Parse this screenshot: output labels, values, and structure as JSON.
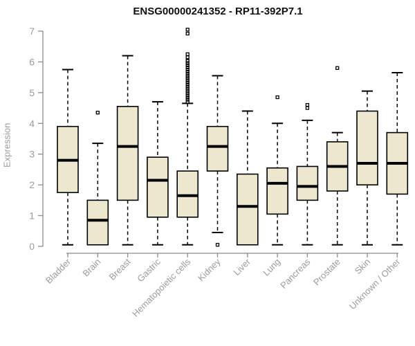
{
  "chart_data": {
    "type": "boxplot",
    "title": "ENSG00000241352 - RP11-392P7.1",
    "ylabel": "Expression",
    "ylim": [
      0,
      7
    ],
    "yticks": [
      0,
      1,
      2,
      3,
      4,
      5,
      6,
      7
    ],
    "grid": false,
    "legend": "none",
    "categories": [
      "Bladder",
      "Brain",
      "Breast",
      "Gastric",
      "Hematopoietic cells",
      "Kidney",
      "Liver",
      "Lung",
      "Pancreas",
      "Prostate",
      "Skin",
      "Unknown / Other"
    ],
    "boxes": [
      {
        "category": "Bladder",
        "whisker_low": 0.05,
        "q1": 1.75,
        "median": 2.8,
        "q3": 3.9,
        "whisker_high": 5.75,
        "outliers": []
      },
      {
        "category": "Brain",
        "whisker_low": 0.05,
        "q1": 0.05,
        "median": 0.85,
        "q3": 1.5,
        "whisker_high": 3.35,
        "outliers": [
          4.35
        ]
      },
      {
        "category": "Breast",
        "whisker_low": 0.05,
        "q1": 1.5,
        "median": 3.25,
        "q3": 4.55,
        "whisker_high": 6.2,
        "outliers": []
      },
      {
        "category": "Gastric",
        "whisker_low": 0.05,
        "q1": 0.95,
        "median": 2.15,
        "q3": 2.9,
        "whisker_high": 4.7,
        "outliers": []
      },
      {
        "category": "Hematopoietic cells",
        "whisker_low": 0.05,
        "q1": 0.95,
        "median": 1.65,
        "q3": 2.45,
        "whisker_high": 4.65,
        "outliers": [
          7.05,
          6.92,
          6.25,
          6.15,
          6.03,
          5.96,
          5.89,
          5.82,
          5.75,
          5.68,
          5.61,
          5.54,
          5.47,
          5.4,
          5.33,
          5.26,
          5.19,
          5.12,
          5.05,
          4.98,
          4.91,
          4.84,
          4.77,
          4.7
        ]
      },
      {
        "category": "Kidney",
        "whisker_low": 0.45,
        "q1": 2.45,
        "median": 3.25,
        "q3": 3.9,
        "whisker_high": 5.55,
        "outliers": [
          0.05
        ]
      },
      {
        "category": "Liver",
        "whisker_low": 0.05,
        "q1": 0.05,
        "median": 1.3,
        "q3": 2.35,
        "whisker_high": 4.4,
        "outliers": []
      },
      {
        "category": "Lung",
        "whisker_low": 0.05,
        "q1": 1.05,
        "median": 2.05,
        "q3": 2.55,
        "whisker_high": 4.0,
        "outliers": [
          4.85
        ]
      },
      {
        "category": "Pancreas",
        "whisker_low": 0.05,
        "q1": 1.5,
        "median": 1.95,
        "q3": 2.6,
        "whisker_high": 4.1,
        "outliers": [
          4.5,
          4.6
        ]
      },
      {
        "category": "Prostate",
        "whisker_low": 0.05,
        "q1": 1.8,
        "median": 2.6,
        "q3": 3.4,
        "whisker_high": 3.7,
        "outliers": [
          5.8
        ]
      },
      {
        "category": "Skin",
        "whisker_low": 0.05,
        "q1": 2.0,
        "median": 2.7,
        "q3": 4.4,
        "whisker_high": 5.05,
        "outliers": []
      },
      {
        "category": "Unknown / Other",
        "whisker_low": 0.05,
        "q1": 1.7,
        "median": 2.7,
        "q3": 3.7,
        "whisker_high": 5.65,
        "outliers": []
      }
    ],
    "colors": {
      "box_fill": "#ECE7CE",
      "box_stroke": "#000000",
      "median": "#000000",
      "whisker": "#000000",
      "outlier": "#000000",
      "axis": "#8c8c8c",
      "tick_label": "#9c9c9c",
      "axis_label": "#9c9c9c",
      "title": "#111111"
    }
  }
}
